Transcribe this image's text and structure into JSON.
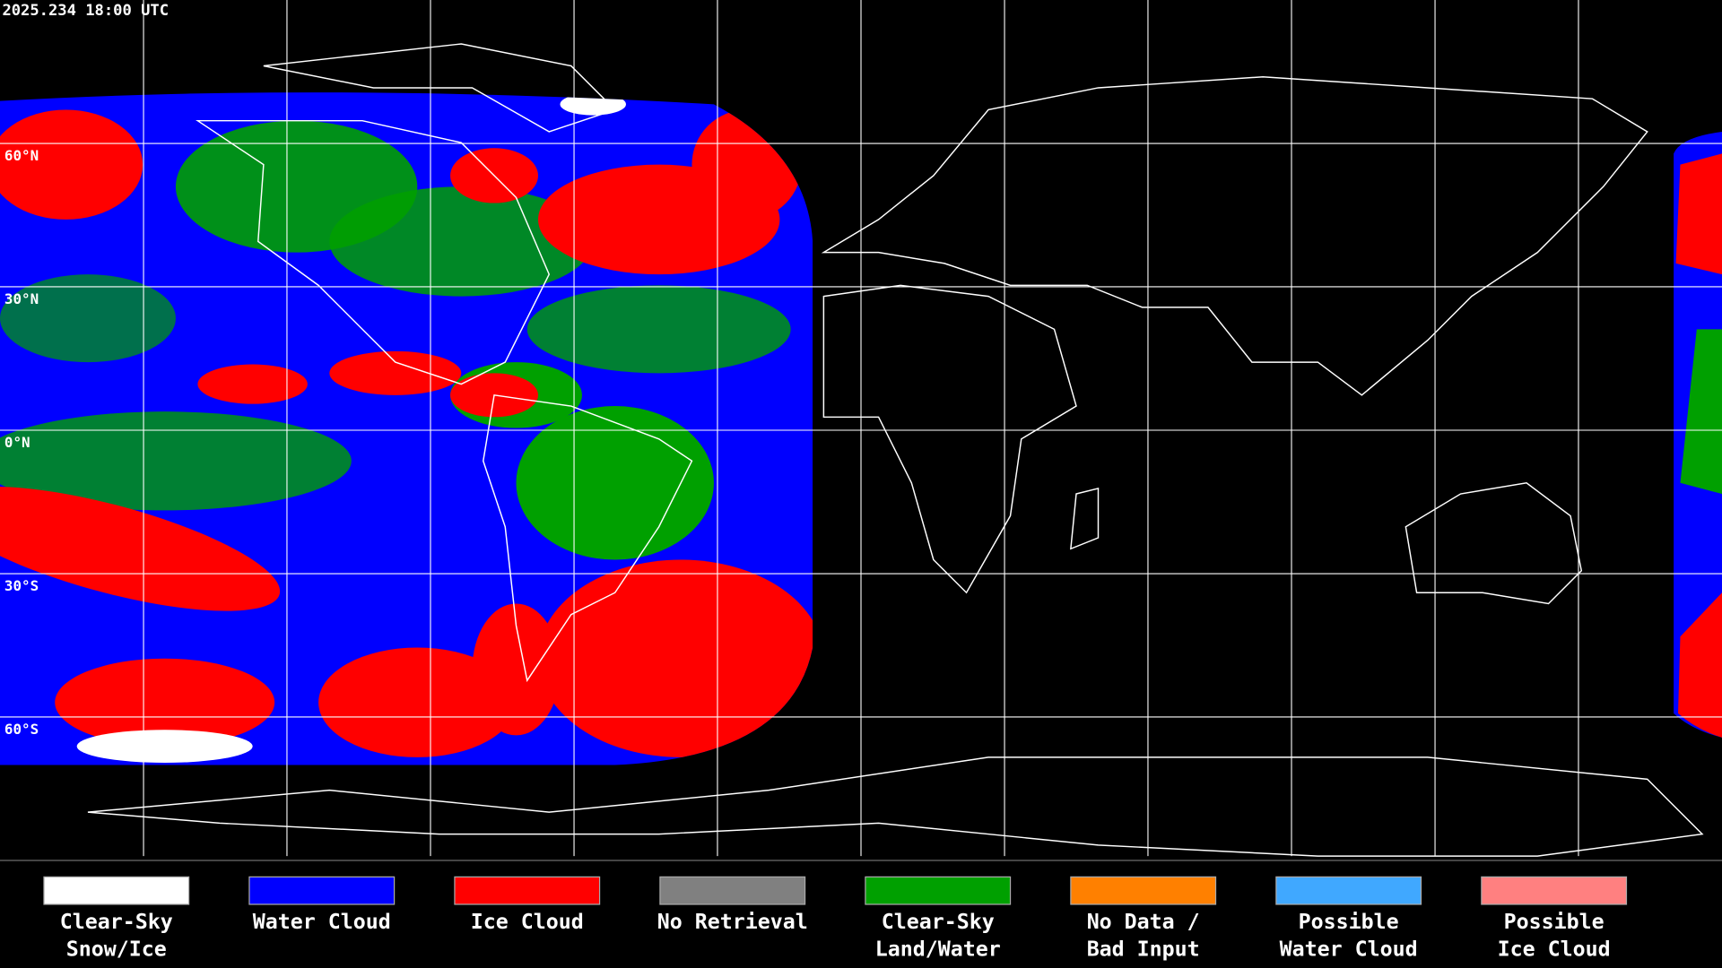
{
  "timestamp": "2025.234 18:00 UTC",
  "latitude_labels": [
    "60°N",
    "30°N",
    "0°N",
    "30°S",
    "60°S"
  ],
  "legend": [
    {
      "lines": [
        "Clear-Sky",
        "Snow/Ice"
      ],
      "color": "#ffffff"
    },
    {
      "lines": [
        "Water Cloud"
      ],
      "color": "#0000ff"
    },
    {
      "lines": [
        "Ice Cloud"
      ],
      "color": "#ff0000"
    },
    {
      "lines": [
        "No Retrieval"
      ],
      "color": "#808080"
    },
    {
      "lines": [
        "Clear-Sky",
        "Land/Water"
      ],
      "color": "#00a000"
    },
    {
      "lines": [
        "No Data /",
        "Bad Input"
      ],
      "color": "#ff8000"
    },
    {
      "lines": [
        "Possible",
        "Water Cloud"
      ],
      "color": "#40a8ff"
    },
    {
      "lines": [
        "Possible",
        "Ice Cloud"
      ],
      "color": "#ff8080"
    }
  ]
}
